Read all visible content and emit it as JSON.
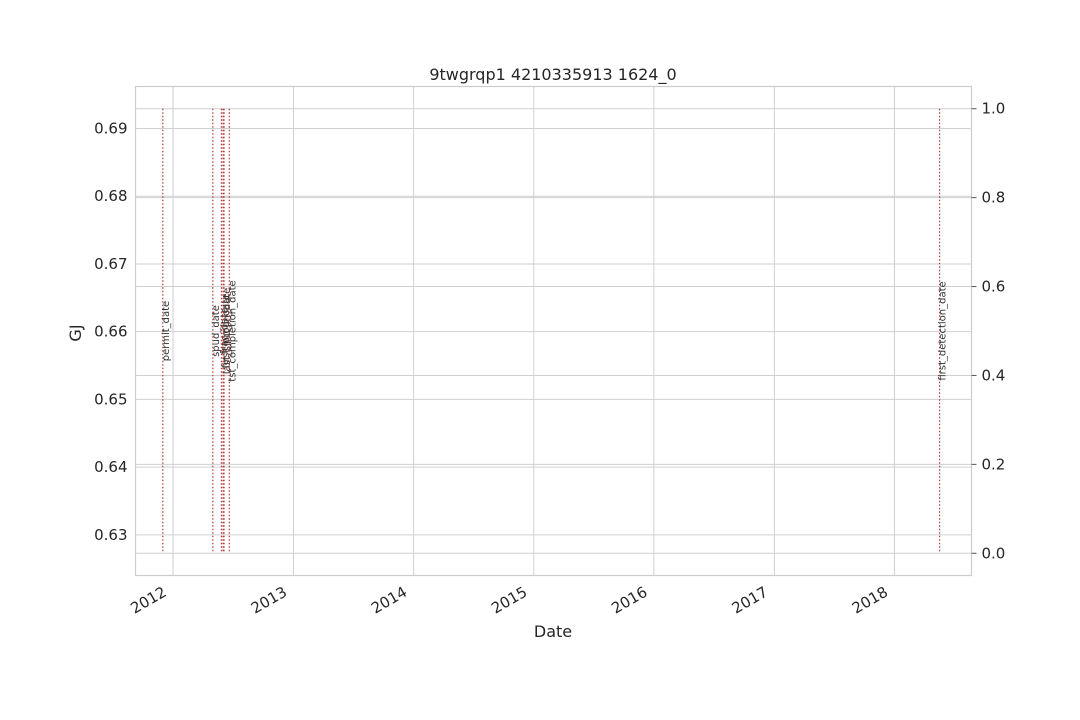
{
  "chart_data": {
    "type": "line",
    "title": "9twgrqp1 4210335913 1624_0",
    "xlabel": "Date",
    "ylabel": "GJ",
    "ylabel_color": "#1f77b4",
    "x_ticks": [
      "2012",
      "2013",
      "2014",
      "2015",
      "2016",
      "2017",
      "2018"
    ],
    "xlim": [
      "2011-09-09",
      "2018-08-23"
    ],
    "left_y_ticks": [
      "0.63",
      "0.64",
      "0.65",
      "0.66",
      "0.67",
      "0.68",
      "0.69"
    ],
    "left_ylim": [
      0.624,
      0.6962
    ],
    "right_y_ticks": [
      "0.0",
      "0.2",
      "0.4",
      "0.6",
      "0.8",
      "1.0"
    ],
    "right_ylim": [
      -0.05,
      1.05
    ],
    "grid": true,
    "series": [],
    "events": [
      {
        "label": "permit_date",
        "date": "2011-12-01"
      },
      {
        "label": "spud_date",
        "date": "2012-05-01"
      },
      {
        "label": "frac_date",
        "date": "2012-05-27"
      },
      {
        "label": "first_prod_date",
        "date": "2012-06-01"
      },
      {
        "label": "last_shut_in_date",
        "date": "2012-06-04"
      },
      {
        "label": "tst_completion_date",
        "date": "2012-06-20"
      },
      {
        "label": "first_detection_date",
        "date": "2018-05-18"
      }
    ],
    "event_line_color": "#b03a3a"
  }
}
